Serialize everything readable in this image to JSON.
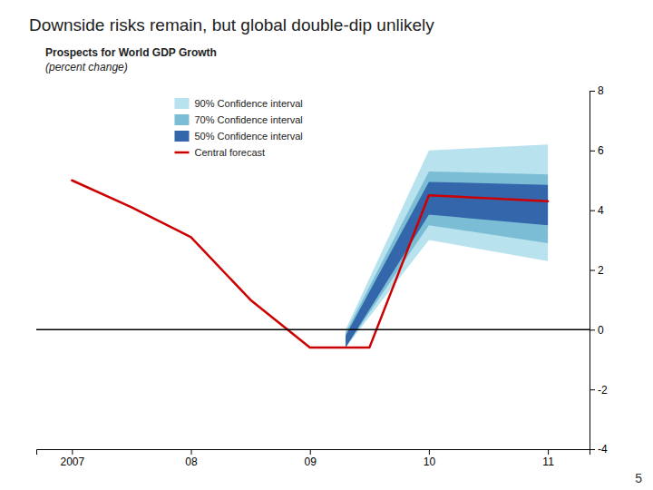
{
  "chart_data": {
    "type": "fan",
    "title": "Downside risks remain, but global double-dip unlikely",
    "subtitle": "Prospects for World GDP Growth",
    "annotations": [
      "(percent change)",
      "5"
    ],
    "xlim": [
      2006.7,
      2011.35
    ],
    "xticks": [
      2007,
      {
        "value": 2008,
        "label": "08"
      },
      {
        "value": 2009,
        "label": "09"
      },
      {
        "value": 2010,
        "label": "10"
      },
      {
        "value": 2011,
        "label": "11"
      }
    ],
    "ylim": [
      -4,
      8
    ],
    "yticks": [
      -4,
      -2,
      0,
      2,
      4,
      6,
      8
    ],
    "grid": false,
    "legend": "upper left",
    "series": [
      {
        "name": "90% Confidence interval",
        "type": "area",
        "color": "#B8E2EE",
        "x": [
          2009.3,
          2010.0,
          2011.0
        ],
        "upper": [
          0.0,
          6.0,
          6.2
        ],
        "lower": [
          -0.6,
          3.0,
          2.3
        ]
      },
      {
        "name": "70% Confidence interval",
        "type": "area",
        "color": "#7BBDD4",
        "x": [
          2009.3,
          2010.0,
          2011.0
        ],
        "upper": [
          -0.1,
          5.3,
          5.2
        ],
        "lower": [
          -0.6,
          3.5,
          2.9
        ]
      },
      {
        "name": "50% Confidence interval",
        "type": "area",
        "color": "#3366AA",
        "x": [
          2009.3,
          2010.0,
          2011.0
        ],
        "upper": [
          -0.2,
          4.95,
          4.85
        ],
        "lower": [
          -0.6,
          3.85,
          3.5
        ]
      },
      {
        "name": "Central forecast",
        "type": "line",
        "color": "#CC0000",
        "x": [
          2007,
          2007.5,
          2008,
          2008.5,
          2009,
          2009.5,
          2010,
          2010.5,
          2011
        ],
        "values": [
          5.0,
          4.1,
          3.1,
          1.0,
          -0.6,
          -0.6,
          4.5,
          4.4,
          4.3
        ]
      }
    ],
    "reference_lines": [
      {
        "value": 0,
        "color": "#000000"
      }
    ]
  }
}
